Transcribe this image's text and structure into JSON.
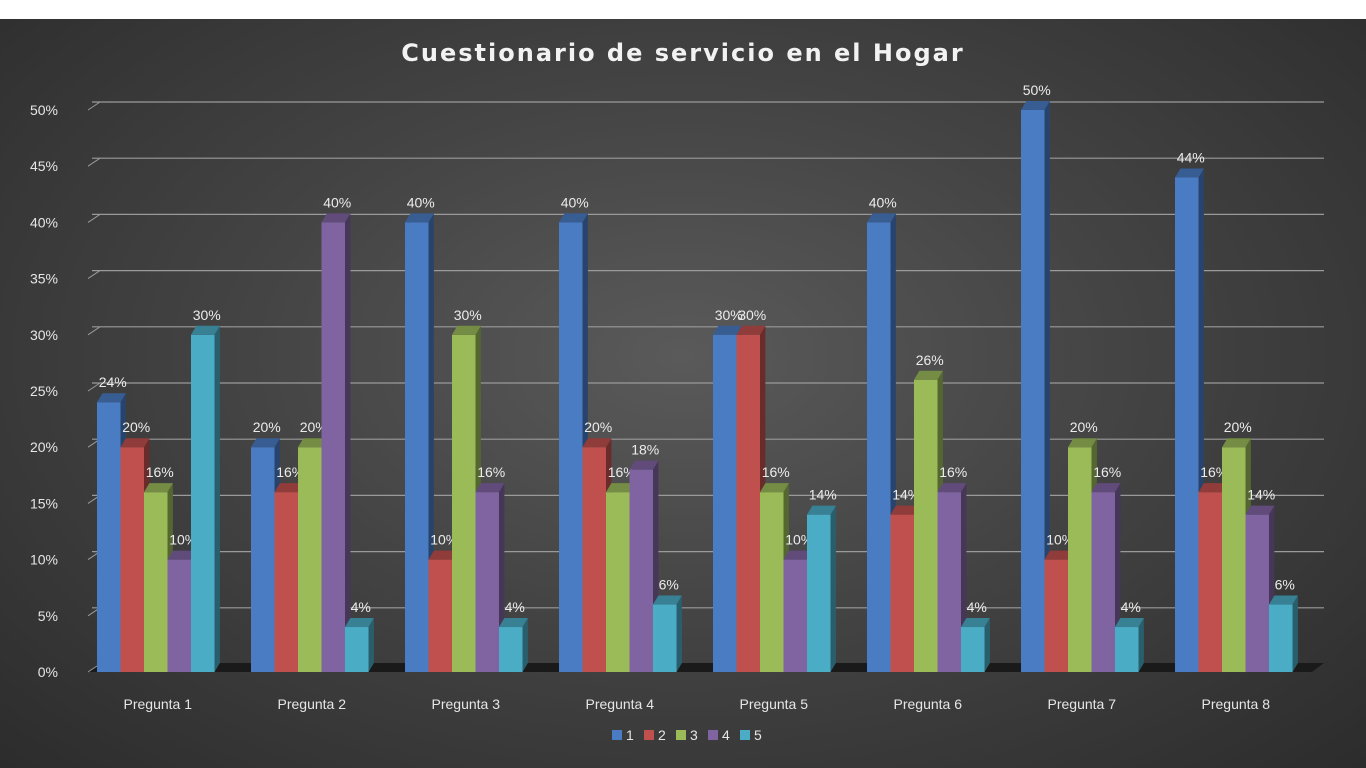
{
  "chart_data": {
    "type": "bar",
    "title": "Cuestionario de servicio en el Hogar",
    "xlabel": "",
    "ylabel": "",
    "ylim": [
      0,
      0.5
    ],
    "y_ticks": [
      "0%",
      "5%",
      "10%",
      "15%",
      "20%",
      "25%",
      "30%",
      "35%",
      "40%",
      "45%",
      "50%"
    ],
    "categories": [
      "Pregunta 1",
      "Pregunta 2",
      "Pregunta 3",
      "Pregunta 4",
      "Pregunta 5",
      "Pregunta 6",
      "Pregunta 7",
      "Pregunta 8"
    ],
    "series": [
      {
        "name": "1",
        "color": "#4a7cc4",
        "values": [
          0.24,
          0.2,
          0.4,
          0.4,
          0.3,
          0.4,
          0.5,
          0.44
        ]
      },
      {
        "name": "2",
        "color": "#c0504d",
        "values": [
          0.2,
          0.16,
          0.1,
          0.2,
          0.3,
          0.14,
          0.1,
          0.16
        ]
      },
      {
        "name": "3",
        "color": "#9bbb59",
        "values": [
          0.16,
          0.2,
          0.3,
          0.16,
          0.16,
          0.26,
          0.2,
          0.2
        ]
      },
      {
        "name": "4",
        "color": "#8064a2",
        "values": [
          0.1,
          0.4,
          0.16,
          0.18,
          0.1,
          0.16,
          0.16,
          0.14
        ]
      },
      {
        "name": "5",
        "color": "#4bacc6",
        "values": [
          0.3,
          0.04,
          0.04,
          0.06,
          0.14,
          0.04,
          0.04,
          0.06
        ]
      }
    ],
    "data_labels": [
      [
        "24%",
        "20%",
        "40%",
        "40%",
        "30%",
        "40%",
        "50%",
        "44%"
      ],
      [
        "20%",
        "16%",
        "10%",
        "20%",
        "30%",
        "14%",
        "10%",
        "16%"
      ],
      [
        "16%",
        "20%",
        "30%",
        "16%",
        "16%",
        "26%",
        "20%",
        "20%"
      ],
      [
        "10%",
        "40%",
        "16%",
        "18%",
        "10%",
        "16%",
        "16%",
        "14%"
      ],
      [
        "30%",
        "4%",
        "4%",
        "6%",
        "14%",
        "4%",
        "4%",
        "6%"
      ]
    ],
    "grid": true,
    "legend": "bottom"
  }
}
